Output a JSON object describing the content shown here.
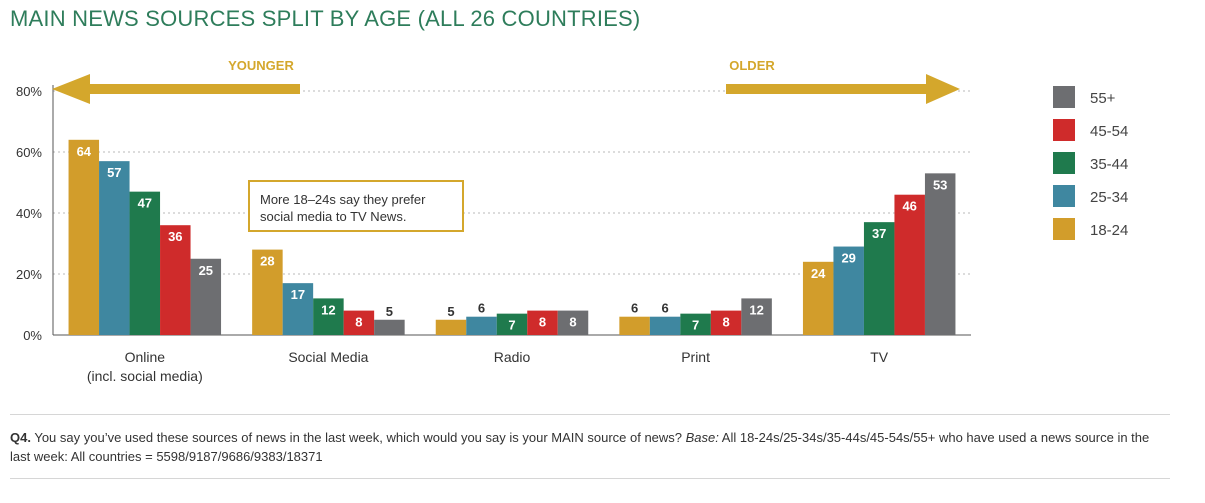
{
  "title": "MAIN NEWS SOURCES SPLIT BY AGE (ALL 26 COUNTRIES)",
  "arrows": {
    "left_label": "YOUNGER",
    "right_label": "OLDER",
    "color": "#d4a72c"
  },
  "callout": {
    "line1": "More 18–24s say they prefer",
    "line2": "social media to TV News."
  },
  "footnote": {
    "q_label": "Q4.",
    "question": " You say you’ve used these sources of news in the last week, which would you say is your MAIN source of news? ",
    "base_label": "Base:",
    "base_text": " All 18-24s/25-34s/35-44s/45-54s/55+ who have used a news source in the last week: All countries = 5598/9187/9686/9383/18371"
  },
  "chart_data": {
    "type": "bar",
    "categories": [
      "Online",
      "Social Media",
      "Radio",
      "Print",
      "TV"
    ],
    "category_sublabels": [
      "(incl. social media)",
      "",
      "",
      "",
      ""
    ],
    "series": [
      {
        "name": "18-24",
        "color": "#d29d2b",
        "values": [
          64,
          28,
          5,
          6,
          24
        ]
      },
      {
        "name": "25-34",
        "color": "#3f87a0",
        "values": [
          57,
          17,
          6,
          6,
          29
        ]
      },
      {
        "name": "35-44",
        "color": "#1f7a4d",
        "values": [
          47,
          12,
          7,
          7,
          37
        ]
      },
      {
        "name": "45-54",
        "color": "#cf2b2b",
        "values": [
          36,
          8,
          8,
          8,
          46
        ]
      },
      {
        "name": "55+",
        "color": "#6d6e71",
        "values": [
          25,
          5,
          8,
          12,
          53
        ]
      }
    ],
    "yticks": [
      "0%",
      "20%",
      "40%",
      "60%",
      "80%"
    ],
    "ylim": [
      0,
      80
    ],
    "grid": true,
    "legend_position": "right",
    "legend_order": [
      "55+",
      "45-54",
      "35-44",
      "25-34",
      "18-24"
    ]
  }
}
